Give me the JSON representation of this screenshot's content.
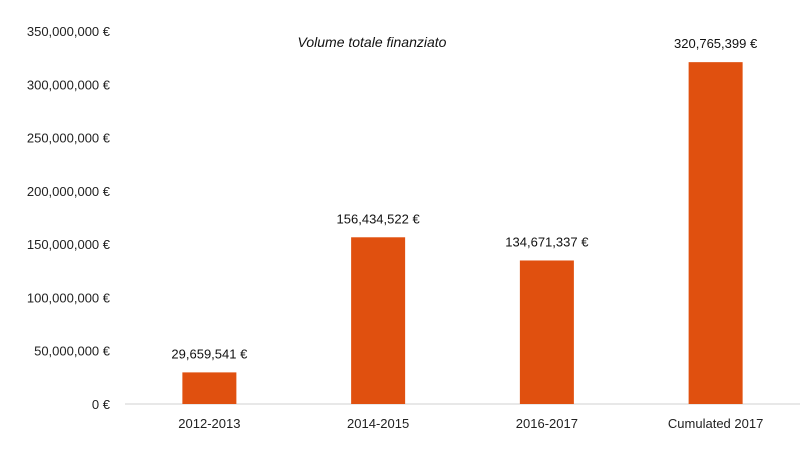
{
  "chart_data": {
    "type": "bar",
    "title": "Volume totale finanziato",
    "xlabel": "",
    "ylabel": "",
    "categories": [
      "2012-2013",
      "2014-2015",
      "2016-2017",
      "Cumulated 2017"
    ],
    "values": [
      29659541,
      156434522,
      134671337,
      320765399
    ],
    "data_labels": [
      "29,659,541 €",
      "156,434,522 €",
      "134,671,337 €",
      "320,765,399 €"
    ],
    "y_ticks": [
      0,
      50000000,
      100000000,
      150000000,
      200000000,
      250000000,
      300000000,
      350000000
    ],
    "y_tick_labels": [
      "0 €",
      "50,000,000 €",
      "100,000,000 €",
      "150,000,000 €",
      "200,000,000 €",
      "250,000,000 €",
      "300,000,000 €",
      "350,000,000 €"
    ],
    "ylim": [
      0,
      350000000
    ],
    "grid": false,
    "legend": "none",
    "bar_color": "#e0500f"
  }
}
